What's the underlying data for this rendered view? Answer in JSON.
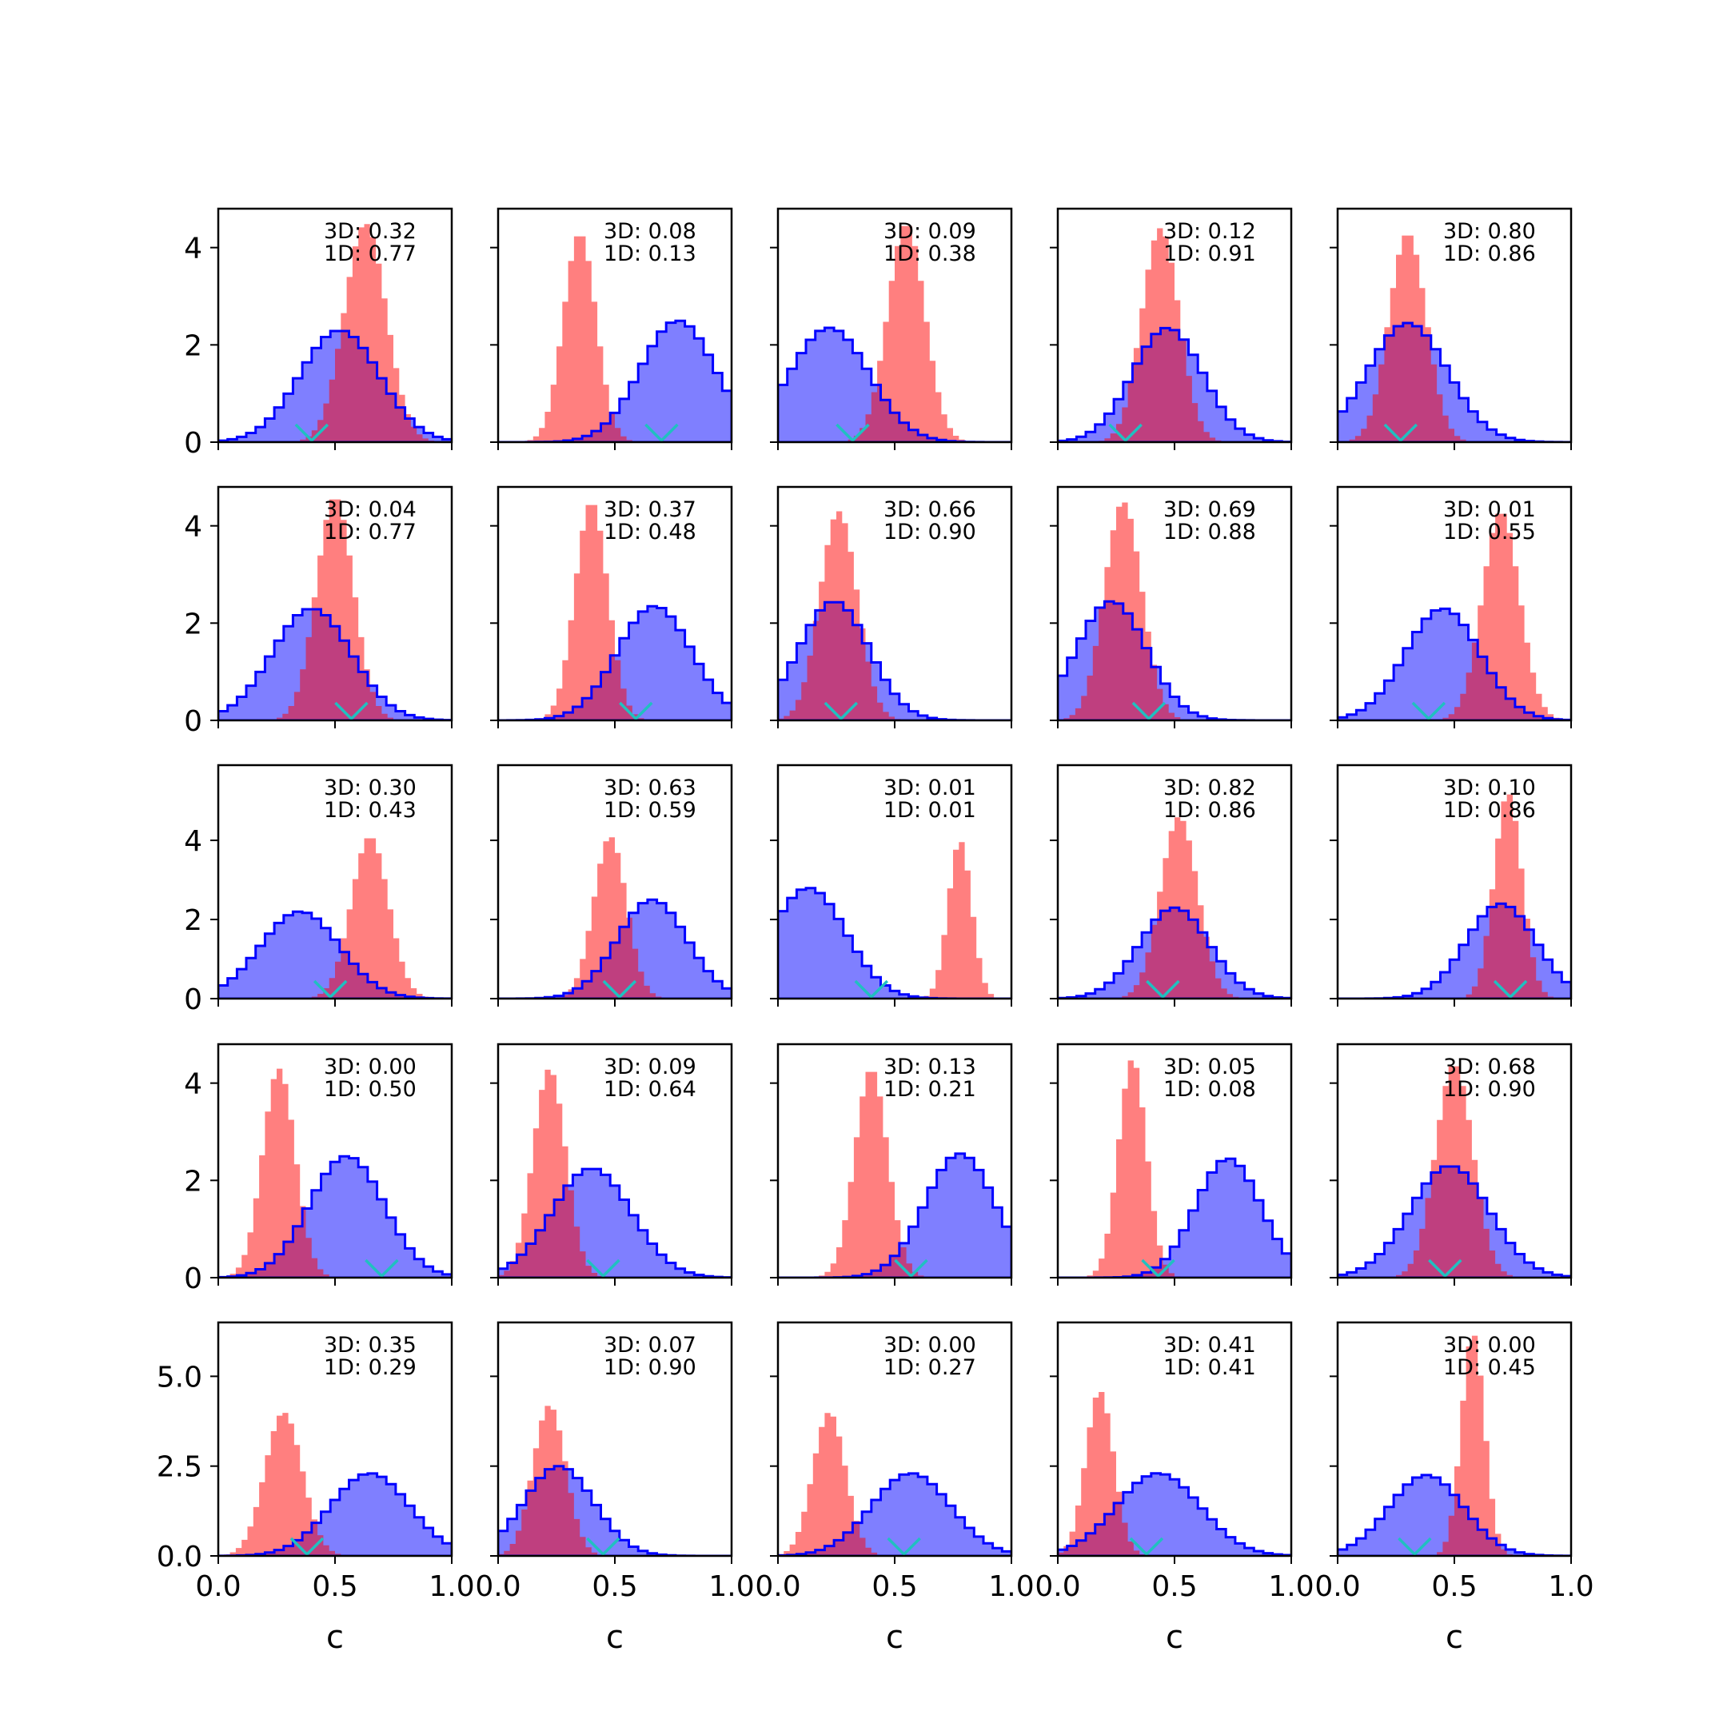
{
  "figure": {
    "xlabel": "c",
    "colors": {
      "red_fill": "#ff0000",
      "red_alpha": 0.5,
      "blue_fill": "#0000ff",
      "blue_alpha": 0.5,
      "blue_edge": "#0000ff",
      "marker": "#20c0c0",
      "frame": "#000000",
      "background": "#ffffff"
    },
    "marker_icon": "v-marker-icon"
  },
  "chart_data": [
    {
      "type": "histogram",
      "row": 1,
      "col": 1,
      "xlim": [
        0,
        1
      ],
      "ylim": [
        0,
        4.8
      ],
      "yticks": [
        "0",
        "2",
        "4"
      ],
      "show_yticks": true,
      "show_xticks": false,
      "xticks": [
        "0.0",
        "0.5",
        "1.0"
      ],
      "xlabel": "",
      "annot": [
        "3D: 0.32",
        "1D: 0.77"
      ],
      "blue": {
        "mu": 0.52,
        "sigma": 0.17,
        "peak": 2.3
      },
      "red": {
        "mu": 0.63,
        "sigma": 0.09,
        "peak": 4.5
      },
      "marker_x": 0.4
    },
    {
      "type": "histogram",
      "row": 1,
      "col": 2,
      "xlim": [
        0,
        1
      ],
      "ylim": [
        0,
        4.8
      ],
      "yticks": [
        "0",
        "2",
        "4"
      ],
      "show_yticks": false,
      "show_xticks": false,
      "xticks": [
        "0.0",
        "0.5",
        "1.0"
      ],
      "xlabel": "",
      "annot": [
        "3D: 0.08",
        "1D: 0.13"
      ],
      "blue": {
        "mu": 0.77,
        "sigma": 0.16,
        "peak": 2.5
      },
      "red": {
        "mu": 0.35,
        "sigma": 0.07,
        "peak": 4.3
      },
      "marker_x": 0.7
    },
    {
      "type": "histogram",
      "row": 1,
      "col": 3,
      "xlim": [
        0,
        1
      ],
      "ylim": [
        0,
        4.8
      ],
      "yticks": [
        "0",
        "2",
        "4"
      ],
      "show_yticks": false,
      "show_xticks": false,
      "xticks": [
        "0.0",
        "0.5",
        "1.0"
      ],
      "xlabel": "",
      "annot": [
        "3D: 0.09",
        "1D: 0.38"
      ],
      "blue": {
        "mu": 0.22,
        "sigma": 0.17,
        "peak": 2.35
      },
      "red": {
        "mu": 0.55,
        "sigma": 0.08,
        "peak": 4.5
      },
      "marker_x": 0.32
    },
    {
      "type": "histogram",
      "row": 1,
      "col": 4,
      "xlim": [
        0,
        1
      ],
      "ylim": [
        0,
        4.8
      ],
      "yticks": [
        "0",
        "2",
        "4"
      ],
      "show_yticks": false,
      "show_xticks": false,
      "xticks": [
        "0.0",
        "0.5",
        "1.0"
      ],
      "xlabel": "",
      "annot": [
        "3D: 0.12",
        "1D: 0.91"
      ],
      "blue": {
        "mu": 0.47,
        "sigma": 0.15,
        "peak": 2.35
      },
      "red": {
        "mu": 0.44,
        "sigma": 0.08,
        "peak": 4.4
      },
      "marker_x": 0.29
    },
    {
      "type": "histogram",
      "row": 1,
      "col": 5,
      "xlim": [
        0,
        1
      ],
      "ylim": [
        0,
        4.8
      ],
      "yticks": [
        "0",
        "2",
        "4"
      ],
      "show_yticks": false,
      "show_xticks": false,
      "xticks": [
        "0.0",
        "0.5",
        "1.0"
      ],
      "xlabel": "",
      "annot": [
        "3D: 0.80",
        "1D: 0.86"
      ],
      "blue": {
        "mu": 0.3,
        "sigma": 0.17,
        "peak": 2.45
      },
      "red": {
        "mu": 0.3,
        "sigma": 0.08,
        "peak": 4.3
      },
      "marker_x": 0.27
    },
    {
      "type": "histogram",
      "row": 2,
      "col": 1,
      "xlim": [
        0,
        1
      ],
      "ylim": [
        0,
        4.8
      ],
      "yticks": [
        "0",
        "2",
        "4"
      ],
      "show_yticks": true,
      "show_xticks": false,
      "xticks": [
        "0.0",
        "0.5",
        "1.0"
      ],
      "xlabel": "",
      "annot": [
        "3D: 0.04",
        "1D: 0.77"
      ],
      "blue": {
        "mu": 0.4,
        "sigma": 0.17,
        "peak": 2.3
      },
      "red": {
        "mu": 0.5,
        "sigma": 0.08,
        "peak": 4.6
      },
      "marker_x": 0.57
    },
    {
      "type": "histogram",
      "row": 2,
      "col": 2,
      "xlim": [
        0,
        1
      ],
      "ylim": [
        0,
        4.8
      ],
      "yticks": [
        "0",
        "2",
        "4"
      ],
      "show_yticks": false,
      "show_xticks": false,
      "xticks": [
        "0.0",
        "0.5",
        "1.0"
      ],
      "xlabel": "",
      "annot": [
        "3D: 0.37",
        "1D: 0.48"
      ],
      "blue": {
        "mu": 0.67,
        "sigma": 0.16,
        "peak": 2.35
      },
      "red": {
        "mu": 0.4,
        "sigma": 0.07,
        "peak": 4.5
      },
      "marker_x": 0.59
    },
    {
      "type": "histogram",
      "row": 2,
      "col": 3,
      "xlim": [
        0,
        1
      ],
      "ylim": [
        0,
        4.8
      ],
      "yticks": [
        "0",
        "2",
        "4"
      ],
      "show_yticks": false,
      "show_xticks": false,
      "xticks": [
        "0.0",
        "0.5",
        "1.0"
      ],
      "xlabel": "",
      "annot": [
        "3D: 0.66",
        "1D: 0.90"
      ],
      "blue": {
        "mu": 0.24,
        "sigma": 0.15,
        "peak": 2.45
      },
      "red": {
        "mu": 0.26,
        "sigma": 0.08,
        "peak": 4.3
      },
      "marker_x": 0.27
    },
    {
      "type": "histogram",
      "row": 2,
      "col": 4,
      "xlim": [
        0,
        1
      ],
      "ylim": [
        0,
        4.8
      ],
      "yticks": [
        "0",
        "2",
        "4"
      ],
      "show_yticks": false,
      "show_xticks": false,
      "xticks": [
        "0.0",
        "0.5",
        "1.0"
      ],
      "xlabel": "",
      "annot": [
        "3D: 0.69",
        "1D: 0.88"
      ],
      "blue": {
        "mu": 0.23,
        "sigma": 0.15,
        "peak": 2.45
      },
      "red": {
        "mu": 0.28,
        "sigma": 0.08,
        "peak": 4.5
      },
      "marker_x": 0.39
    },
    {
      "type": "histogram",
      "row": 2,
      "col": 5,
      "xlim": [
        0,
        1
      ],
      "ylim": [
        0,
        4.8
      ],
      "yticks": [
        "0",
        "2",
        "4"
      ],
      "show_yticks": false,
      "show_xticks": false,
      "xticks": [
        "0.0",
        "0.5",
        "1.0"
      ],
      "xlabel": "",
      "annot": [
        "3D: 0.01",
        "1D: 0.55"
      ],
      "blue": {
        "mu": 0.45,
        "sigma": 0.16,
        "peak": 2.3
      },
      "red": {
        "mu": 0.7,
        "sigma": 0.08,
        "peak": 4.3
      },
      "marker_x": 0.39
    },
    {
      "type": "histogram",
      "row": 3,
      "col": 1,
      "xlim": [
        0,
        1
      ],
      "ylim": [
        0,
        5.9
      ],
      "yticks": [
        "0",
        "2",
        "4"
      ],
      "show_yticks": true,
      "show_xticks": false,
      "xticks": [
        "0.0",
        "0.5",
        "1.0"
      ],
      "xlabel": "",
      "annot": [
        "3D: 0.30",
        "1D: 0.43"
      ],
      "blue": {
        "mu": 0.35,
        "sigma": 0.17,
        "peak": 2.2
      },
      "red": {
        "mu": 0.65,
        "sigma": 0.08,
        "peak": 4.1
      },
      "marker_x": 0.48
    },
    {
      "type": "histogram",
      "row": 3,
      "col": 2,
      "xlim": [
        0,
        1
      ],
      "ylim": [
        0,
        5.9
      ],
      "yticks": [
        "0",
        "2",
        "4"
      ],
      "show_yticks": false,
      "show_xticks": false,
      "xticks": [
        "0.0",
        "0.5",
        "1.0"
      ],
      "xlabel": "",
      "annot": [
        "3D: 0.63",
        "1D: 0.59"
      ],
      "blue": {
        "mu": 0.66,
        "sigma": 0.15,
        "peak": 2.5
      },
      "red": {
        "mu": 0.48,
        "sigma": 0.07,
        "peak": 4.1
      },
      "marker_x": 0.52
    },
    {
      "type": "histogram",
      "row": 3,
      "col": 3,
      "xlim": [
        0,
        1
      ],
      "ylim": [
        0,
        5.9
      ],
      "yticks": [
        "0",
        "2",
        "4"
      ],
      "show_yticks": false,
      "show_xticks": false,
      "xticks": [
        "0.0",
        "0.5",
        "1.0"
      ],
      "xlabel": "",
      "annot": [
        "3D: 0.01",
        "1D: 0.01"
      ],
      "blue": {
        "mu": 0.13,
        "sigma": 0.16,
        "peak": 2.8
      },
      "red": {
        "mu": 0.78,
        "sigma": 0.05,
        "peak": 4.0
      },
      "marker_x": 0.4
    },
    {
      "type": "histogram",
      "row": 3,
      "col": 4,
      "xlim": [
        0,
        1
      ],
      "ylim": [
        0,
        5.9
      ],
      "yticks": [
        "0",
        "2",
        "4"
      ],
      "show_yticks": false,
      "show_xticks": false,
      "xticks": [
        "0.0",
        "0.5",
        "1.0"
      ],
      "xlabel": "",
      "annot": [
        "3D: 0.82",
        "1D: 0.86"
      ],
      "blue": {
        "mu": 0.5,
        "sigma": 0.15,
        "peak": 2.3
      },
      "red": {
        "mu": 0.52,
        "sigma": 0.08,
        "peak": 4.6
      },
      "marker_x": 0.45
    },
    {
      "type": "histogram",
      "row": 3,
      "col": 5,
      "xlim": [
        0,
        1
      ],
      "ylim": [
        0,
        5.9
      ],
      "yticks": [
        "0",
        "2",
        "4"
      ],
      "show_yticks": false,
      "show_xticks": false,
      "xticks": [
        "0.0",
        "0.5",
        "1.0"
      ],
      "xlabel": "",
      "annot": [
        "3D: 0.10",
        "1D: 0.86"
      ],
      "blue": {
        "mu": 0.7,
        "sigma": 0.15,
        "peak": 2.4
      },
      "red": {
        "mu": 0.73,
        "sigma": 0.06,
        "peak": 5.2
      },
      "marker_x": 0.74
    },
    {
      "type": "histogram",
      "row": 4,
      "col": 1,
      "xlim": [
        0,
        1
      ],
      "ylim": [
        0,
        4.8
      ],
      "yticks": [
        "0",
        "2",
        "4"
      ],
      "show_yticks": true,
      "show_xticks": false,
      "xticks": [
        "0.0",
        "0.5",
        "1.0"
      ],
      "xlabel": "",
      "annot": [
        "3D: 0.00",
        "1D: 0.50"
      ],
      "blue": {
        "mu": 0.55,
        "sigma": 0.16,
        "peak": 2.5
      },
      "red": {
        "mu": 0.26,
        "sigma": 0.07,
        "peak": 4.3
      },
      "marker_x": 0.7
    },
    {
      "type": "histogram",
      "row": 4,
      "col": 2,
      "xlim": [
        0,
        1
      ],
      "ylim": [
        0,
        4.8
      ],
      "yticks": [
        "0",
        "2",
        "4"
      ],
      "show_yticks": false,
      "show_xticks": false,
      "xticks": [
        "0.0",
        "0.5",
        "1.0"
      ],
      "xlabel": "",
      "annot": [
        "3D: 0.09",
        "1D: 0.64"
      ],
      "blue": {
        "mu": 0.4,
        "sigma": 0.17,
        "peak": 2.25
      },
      "red": {
        "mu": 0.22,
        "sigma": 0.07,
        "peak": 4.3
      },
      "marker_x": 0.45
    },
    {
      "type": "histogram",
      "row": 4,
      "col": 3,
      "xlim": [
        0,
        1
      ],
      "ylim": [
        0,
        4.8
      ],
      "yticks": [
        "0",
        "2",
        "4"
      ],
      "show_yticks": false,
      "show_xticks": false,
      "xticks": [
        "0.0",
        "0.5",
        "1.0"
      ],
      "xlabel": "",
      "annot": [
        "3D: 0.13",
        "1D: 0.21"
      ],
      "blue": {
        "mu": 0.78,
        "sigma": 0.15,
        "peak": 2.55
      },
      "red": {
        "mu": 0.4,
        "sigma": 0.07,
        "peak": 4.3
      },
      "marker_x": 0.57
    },
    {
      "type": "histogram",
      "row": 4,
      "col": 4,
      "xlim": [
        0,
        1
      ],
      "ylim": [
        0,
        4.8
      ],
      "yticks": [
        "0",
        "2",
        "4"
      ],
      "show_yticks": false,
      "show_xticks": false,
      "xticks": [
        "0.0",
        "0.5",
        "1.0"
      ],
      "xlabel": "",
      "annot": [
        "3D: 0.05",
        "1D: 0.08"
      ],
      "blue": {
        "mu": 0.73,
        "sigma": 0.14,
        "peak": 2.45
      },
      "red": {
        "mu": 0.32,
        "sigma": 0.06,
        "peak": 4.5
      },
      "marker_x": 0.43
    },
    {
      "type": "histogram",
      "row": 4,
      "col": 5,
      "xlim": [
        0,
        1
      ],
      "ylim": [
        0,
        4.8
      ],
      "yticks": [
        "0",
        "2",
        "4"
      ],
      "show_yticks": false,
      "show_xticks": false,
      "xticks": [
        "0.0",
        "0.5",
        "1.0"
      ],
      "xlabel": "",
      "annot": [
        "3D: 0.68",
        "1D: 0.90"
      ],
      "blue": {
        "mu": 0.48,
        "sigma": 0.17,
        "peak": 2.3
      },
      "red": {
        "mu": 0.5,
        "sigma": 0.08,
        "peak": 4.4
      },
      "marker_x": 0.46
    },
    {
      "type": "histogram",
      "row": 5,
      "col": 1,
      "xlim": [
        0,
        1
      ],
      "ylim": [
        0,
        6.5
      ],
      "yticks": [
        "0.0",
        "2.5",
        "5.0"
      ],
      "show_yticks": true,
      "show_xticks": true,
      "xticks": [
        "0.0",
        "0.5",
        "1.0"
      ],
      "xlabel": "c",
      "annot": [
        "3D: 0.35",
        "1D: 0.29"
      ],
      "blue": {
        "mu": 0.65,
        "sigma": 0.17,
        "peak": 2.3
      },
      "red": {
        "mu": 0.28,
        "sigma": 0.08,
        "peak": 4.0
      },
      "marker_x": 0.38
    },
    {
      "type": "histogram",
      "row": 5,
      "col": 2,
      "xlim": [
        0,
        1
      ],
      "ylim": [
        0,
        6.5
      ],
      "yticks": [
        "0.0",
        "2.5",
        "5.0"
      ],
      "show_yticks": false,
      "show_xticks": true,
      "xticks": [
        "0.0",
        "0.5",
        "1.0"
      ],
      "xlabel": "c",
      "annot": [
        "3D: 0.07",
        "1D: 0.90"
      ],
      "blue": {
        "mu": 0.26,
        "sigma": 0.15,
        "peak": 2.5
      },
      "red": {
        "mu": 0.22,
        "sigma": 0.07,
        "peak": 4.2
      },
      "marker_x": 0.45
    },
    {
      "type": "histogram",
      "row": 5,
      "col": 3,
      "xlim": [
        0,
        1
      ],
      "ylim": [
        0,
        6.5
      ],
      "yticks": [
        "0.0",
        "2.5",
        "5.0"
      ],
      "show_yticks": false,
      "show_xticks": true,
      "xticks": [
        "0.0",
        "0.5",
        "1.0"
      ],
      "xlabel": "c",
      "annot": [
        "3D: 0.00",
        "1D: 0.27"
      ],
      "blue": {
        "mu": 0.57,
        "sigma": 0.17,
        "peak": 2.3
      },
      "red": {
        "mu": 0.22,
        "sigma": 0.07,
        "peak": 4.0
      },
      "marker_x": 0.54
    },
    {
      "type": "histogram",
      "row": 5,
      "col": 4,
      "xlim": [
        0,
        1
      ],
      "ylim": [
        0,
        6.5
      ],
      "yticks": [
        "0.0",
        "2.5",
        "5.0"
      ],
      "show_yticks": false,
      "show_xticks": true,
      "xticks": [
        "0.0",
        "0.5",
        "1.0"
      ],
      "xlabel": "c",
      "annot": [
        "3D: 0.41",
        "1D: 0.41"
      ],
      "blue": {
        "mu": 0.43,
        "sigma": 0.18,
        "peak": 2.3
      },
      "red": {
        "mu": 0.18,
        "sigma": 0.06,
        "peak": 4.6
      },
      "marker_x": 0.38
    },
    {
      "type": "histogram",
      "row": 5,
      "col": 5,
      "xlim": [
        0,
        1
      ],
      "ylim": [
        0,
        6.5
      ],
      "yticks": [
        "0.0",
        "2.5",
        "5.0"
      ],
      "show_yticks": false,
      "show_xticks": true,
      "xticks": [
        "0.0",
        "0.5",
        "1.0"
      ],
      "xlabel": "c",
      "annot": [
        "3D: 0.00",
        "1D: 0.45"
      ],
      "blue": {
        "mu": 0.38,
        "sigma": 0.16,
        "peak": 2.25
      },
      "red": {
        "mu": 0.58,
        "sigma": 0.05,
        "peak": 6.2
      },
      "marker_x": 0.33
    }
  ]
}
